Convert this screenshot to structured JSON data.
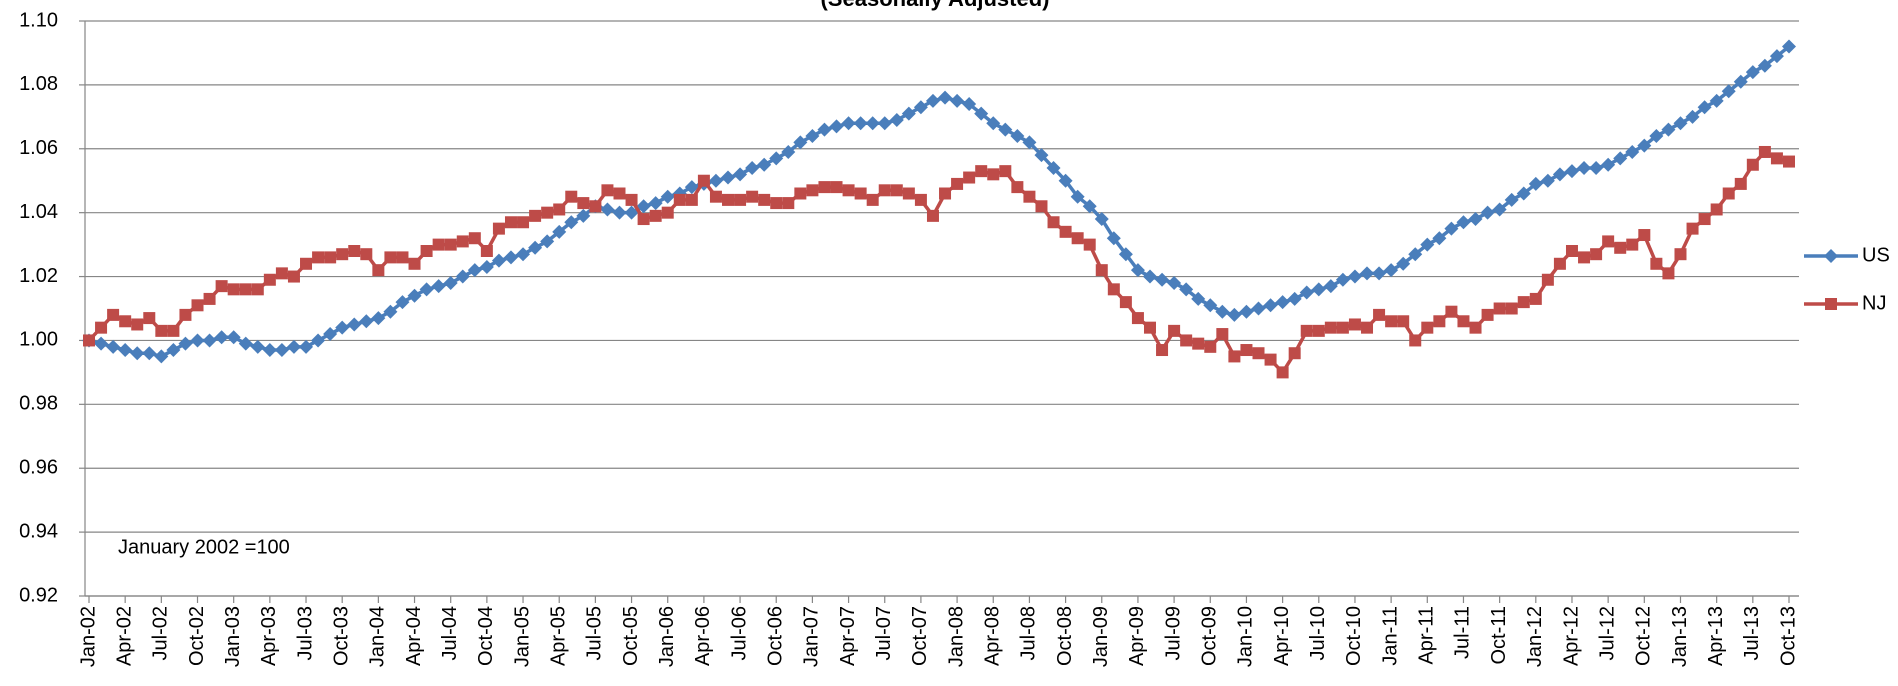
{
  "chart_data": {
    "type": "line",
    "subtitle": "(Seasonally Adjusted)",
    "annotation": "January 2002 =100",
    "categories": [
      "Jan-02",
      null,
      null,
      "Apr-02",
      null,
      null,
      "Jul-02",
      null,
      null,
      "Oct-02",
      null,
      null,
      "Jan-03",
      null,
      null,
      "Apr-03",
      null,
      null,
      "Jul-03",
      null,
      null,
      "Oct-03",
      null,
      null,
      "Jan-04",
      null,
      null,
      "Apr-04",
      null,
      null,
      "Jul-04",
      null,
      null,
      "Oct-04",
      null,
      null,
      "Jan-05",
      null,
      null,
      "Apr-05",
      null,
      null,
      "Jul-05",
      null,
      null,
      "Oct-05",
      null,
      null,
      "Jan-06",
      null,
      null,
      "Apr-06",
      null,
      null,
      "Jul-06",
      null,
      null,
      "Oct-06",
      null,
      null,
      "Jan-07",
      null,
      null,
      "Apr-07",
      null,
      null,
      "Jul-07",
      null,
      null,
      "Oct-07",
      null,
      null,
      "Jan-08",
      null,
      null,
      "Apr-08",
      null,
      null,
      "Jul-08",
      null,
      null,
      "Oct-08",
      null,
      null,
      "Jan-09",
      null,
      null,
      "Apr-09",
      null,
      null,
      "Jul-09",
      null,
      null,
      "Oct-09",
      null,
      null,
      "Jan-10",
      null,
      null,
      "Apr-10",
      null,
      null,
      "Jul-10",
      null,
      null,
      "Oct-10",
      null,
      null,
      "Jan-11",
      null,
      null,
      "Apr-11",
      null,
      null,
      "Jul-11",
      null,
      null,
      "Oct-11",
      null,
      null,
      "Jan-12",
      null,
      null,
      "Apr-12",
      null,
      null,
      "Jul-12",
      null,
      null,
      "Oct-12",
      null,
      null,
      "Jan-13",
      null,
      null,
      "Apr-13",
      null,
      null,
      "Jul-13",
      null,
      null,
      "Oct-13"
    ],
    "series": [
      {
        "name": "US",
        "color": "#4a7ebb",
        "marker": "diamond",
        "values": [
          1.0,
          0.999,
          0.998,
          0.997,
          0.996,
          0.996,
          0.995,
          0.997,
          0.999,
          1.0,
          1.0,
          1.001,
          1.001,
          0.999,
          0.998,
          0.997,
          0.997,
          0.998,
          0.998,
          1.0,
          1.002,
          1.004,
          1.005,
          1.006,
          1.007,
          1.009,
          1.012,
          1.014,
          1.016,
          1.017,
          1.018,
          1.02,
          1.022,
          1.023,
          1.025,
          1.026,
          1.027,
          1.029,
          1.031,
          1.034,
          1.037,
          1.039,
          1.042,
          1.041,
          1.04,
          1.04,
          1.042,
          1.043,
          1.045,
          1.046,
          1.048,
          1.049,
          1.05,
          1.051,
          1.052,
          1.054,
          1.055,
          1.057,
          1.059,
          1.062,
          1.064,
          1.066,
          1.067,
          1.068,
          1.068,
          1.068,
          1.068,
          1.069,
          1.071,
          1.073,
          1.075,
          1.076,
          1.075,
          1.074,
          1.071,
          1.068,
          1.066,
          1.064,
          1.062,
          1.058,
          1.054,
          1.05,
          1.045,
          1.042,
          1.038,
          1.032,
          1.027,
          1.022,
          1.02,
          1.019,
          1.018,
          1.016,
          1.013,
          1.011,
          1.009,
          1.008,
          1.009,
          1.01,
          1.011,
          1.012,
          1.013,
          1.015,
          1.016,
          1.017,
          1.019,
          1.02,
          1.021,
          1.021,
          1.022,
          1.024,
          1.027,
          1.03,
          1.032,
          1.035,
          1.037,
          1.038,
          1.04,
          1.041,
          1.044,
          1.046,
          1.049,
          1.05,
          1.052,
          1.053,
          1.054,
          1.054,
          1.055,
          1.057,
          1.059,
          1.061,
          1.064,
          1.066,
          1.068,
          1.07,
          1.073,
          1.075,
          1.078,
          1.081,
          1.084,
          1.086,
          1.089,
          1.092
        ]
      },
      {
        "name": "NJ",
        "color": "#be4b48",
        "marker": "square",
        "values": [
          1.0,
          1.004,
          1.008,
          1.006,
          1.005,
          1.007,
          1.003,
          1.003,
          1.008,
          1.011,
          1.013,
          1.017,
          1.016,
          1.016,
          1.016,
          1.019,
          1.021,
          1.02,
          1.024,
          1.026,
          1.026,
          1.027,
          1.028,
          1.027,
          1.022,
          1.026,
          1.026,
          1.024,
          1.028,
          1.03,
          1.03,
          1.031,
          1.032,
          1.028,
          1.035,
          1.037,
          1.037,
          1.039,
          1.04,
          1.041,
          1.045,
          1.043,
          1.042,
          1.047,
          1.046,
          1.044,
          1.038,
          1.039,
          1.04,
          1.044,
          1.044,
          1.05,
          1.045,
          1.044,
          1.044,
          1.045,
          1.044,
          1.043,
          1.043,
          1.046,
          1.047,
          1.048,
          1.048,
          1.047,
          1.046,
          1.044,
          1.047,
          1.047,
          1.046,
          1.044,
          1.039,
          1.046,
          1.049,
          1.051,
          1.053,
          1.052,
          1.053,
          1.048,
          1.045,
          1.042,
          1.037,
          1.034,
          1.032,
          1.03,
          1.022,
          1.016,
          1.012,
          1.007,
          1.004,
          0.997,
          1.003,
          1.0,
          0.999,
          0.998,
          1.002,
          0.995,
          0.997,
          0.996,
          0.994,
          0.99,
          0.996,
          1.003,
          1.003,
          1.004,
          1.004,
          1.005,
          1.004,
          1.008,
          1.006,
          1.006,
          1.0,
          1.004,
          1.006,
          1.009,
          1.006,
          1.004,
          1.008,
          1.01,
          1.01,
          1.012,
          1.013,
          1.019,
          1.024,
          1.028,
          1.026,
          1.027,
          1.031,
          1.029,
          1.03,
          1.033,
          1.024,
          1.021,
          1.027,
          1.035,
          1.038,
          1.041,
          1.046,
          1.049,
          1.055,
          1.059,
          1.057,
          1.056
        ]
      }
    ],
    "ylim": [
      0.92,
      1.1
    ],
    "yticks": [
      0.92,
      0.94,
      0.96,
      0.98,
      {
        "value": 1.0,
        "label": "1.00"
      },
      1.02,
      1.04,
      1.06,
      1.08,
      {
        "value": 1.1,
        "label": "1.10"
      }
    ],
    "grid": true,
    "legend": "right"
  }
}
